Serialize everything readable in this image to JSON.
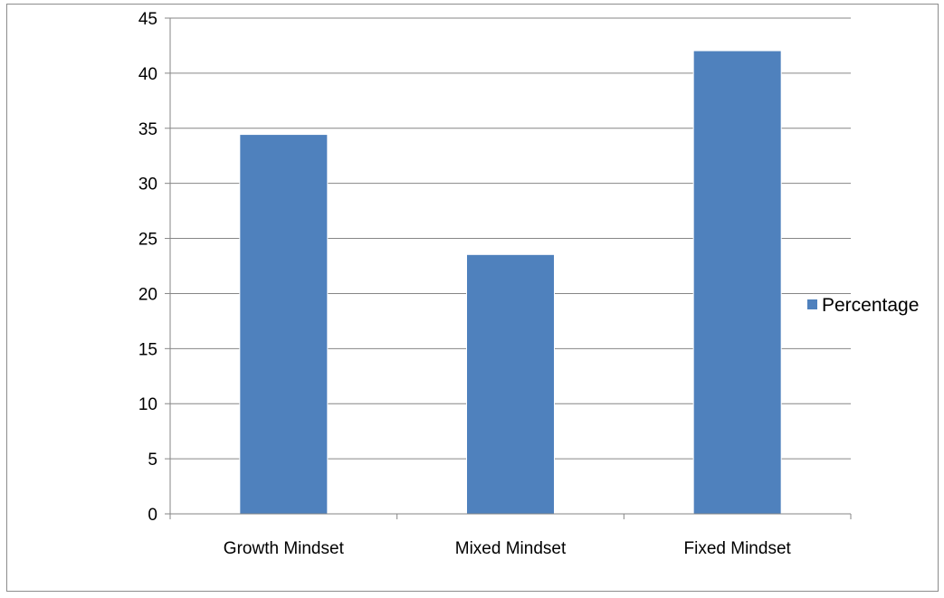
{
  "chart_data": {
    "type": "bar",
    "title": "",
    "xlabel": "",
    "ylabel": "",
    "categories": [
      "Growth Mindset",
      "Mixed Mindset",
      "Fixed Mindset"
    ],
    "series": [
      {
        "name": "Percentage",
        "values": [
          34.4,
          23.5,
          42.0
        ],
        "color": "#4f81bd"
      }
    ],
    "ylim": [
      0,
      45
    ],
    "ytick_step": 5,
    "grid": true,
    "legend": "right"
  }
}
